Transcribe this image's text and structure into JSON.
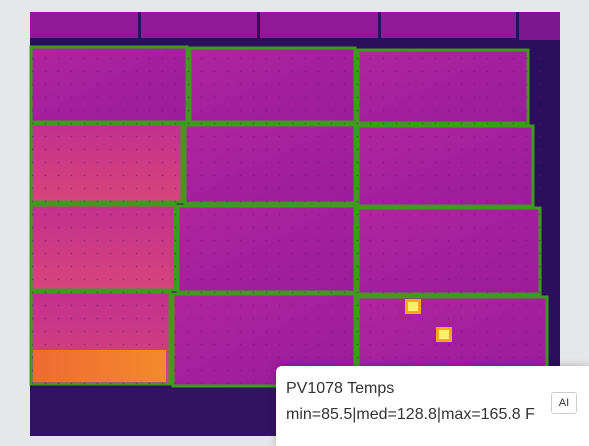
{
  "overlay": {
    "title": "PV1078 Temps",
    "stats": "min=85.5|med=128.8|max=165.8 F",
    "button": "AI"
  }
}
